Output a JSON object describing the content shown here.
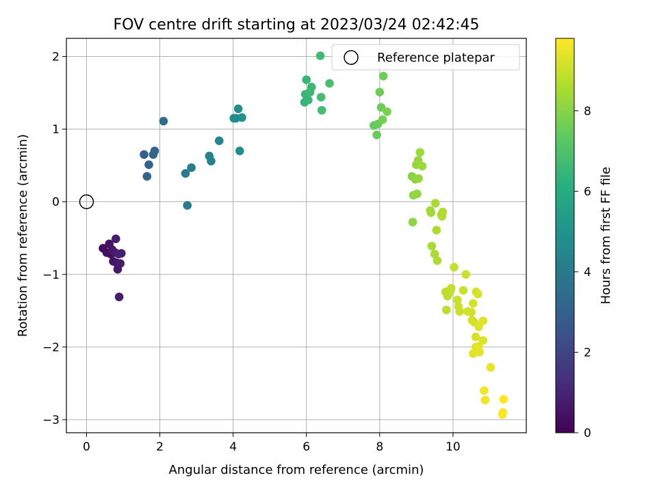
{
  "chart_data": {
    "type": "scatter",
    "title": "FOV centre drift starting at 2023/03/24 02:42:45",
    "xlabel": "Angular distance from reference (arcmin)",
    "ylabel": "Rotation from reference (arcmin)",
    "xlim": [
      -0.55,
      12.0
    ],
    "ylim": [
      -3.18,
      2.25
    ],
    "xticks": [
      0,
      2,
      4,
      6,
      8,
      10
    ],
    "yticks": [
      -3,
      -2,
      -1,
      0,
      1,
      2
    ],
    "grid": true,
    "legend": {
      "placement": "top-right",
      "entries": [
        "Reference platepar"
      ]
    },
    "reference_point": {
      "x": 0,
      "y": 0,
      "label": "Reference platepar"
    },
    "colorbar": {
      "label": "Hours from first FF file",
      "colormap": "viridis",
      "range": [
        0,
        9.8
      ],
      "ticks": [
        0,
        2,
        4,
        6,
        8
      ]
    },
    "points": [
      {
        "x": 0.45,
        "y": -0.64,
        "h": 0.3
      },
      {
        "x": 0.55,
        "y": -0.7,
        "h": 0.4
      },
      {
        "x": 0.62,
        "y": -0.58,
        "h": 0.5
      },
      {
        "x": 0.66,
        "y": -0.72,
        "h": 0.4
      },
      {
        "x": 0.7,
        "y": -0.66,
        "h": 0.6
      },
      {
        "x": 0.73,
        "y": -0.82,
        "h": 0.5
      },
      {
        "x": 0.78,
        "y": -0.7,
        "h": 0.7
      },
      {
        "x": 0.8,
        "y": -0.51,
        "h": 0.8
      },
      {
        "x": 0.82,
        "y": -0.84,
        "h": 0.6
      },
      {
        "x": 0.85,
        "y": -0.93,
        "h": 0.7
      },
      {
        "x": 0.88,
        "y": -0.72,
        "h": 0.9
      },
      {
        "x": 0.92,
        "y": -0.85,
        "h": 0.8
      },
      {
        "x": 0.95,
        "y": -0.71,
        "h": 0.9
      },
      {
        "x": 0.89,
        "y": -1.31,
        "h": 0.8
      },
      {
        "x": 1.57,
        "y": 0.65,
        "h": 3.0
      },
      {
        "x": 1.65,
        "y": 0.35,
        "h": 3.1
      },
      {
        "x": 1.7,
        "y": 0.51,
        "h": 3.1
      },
      {
        "x": 1.82,
        "y": 0.65,
        "h": 3.2
      },
      {
        "x": 1.86,
        "y": 0.7,
        "h": 3.2
      },
      {
        "x": 2.1,
        "y": 1.11,
        "h": 3.5
      },
      {
        "x": 2.7,
        "y": 0.39,
        "h": 4.0
      },
      {
        "x": 2.75,
        "y": -0.05,
        "h": 4.1
      },
      {
        "x": 2.86,
        "y": 0.47,
        "h": 4.1
      },
      {
        "x": 3.35,
        "y": 0.63,
        "h": 4.3
      },
      {
        "x": 3.4,
        "y": 0.56,
        "h": 4.3
      },
      {
        "x": 3.62,
        "y": 0.84,
        "h": 4.4
      },
      {
        "x": 4.02,
        "y": 1.15,
        "h": 4.7
      },
      {
        "x": 4.08,
        "y": 1.15,
        "h": 4.7
      },
      {
        "x": 4.14,
        "y": 1.28,
        "h": 4.8
      },
      {
        "x": 4.18,
        "y": 0.7,
        "h": 4.8
      },
      {
        "x": 4.24,
        "y": 1.16,
        "h": 4.9
      },
      {
        "x": 5.95,
        "y": 1.37,
        "h": 6.4
      },
      {
        "x": 5.97,
        "y": 1.48,
        "h": 6.5
      },
      {
        "x": 6.0,
        "y": 1.68,
        "h": 6.5
      },
      {
        "x": 6.05,
        "y": 1.4,
        "h": 6.5
      },
      {
        "x": 6.1,
        "y": 1.51,
        "h": 6.6
      },
      {
        "x": 6.14,
        "y": 1.58,
        "h": 6.6
      },
      {
        "x": 6.38,
        "y": 2.01,
        "h": 6.7
      },
      {
        "x": 6.4,
        "y": 1.44,
        "h": 6.8
      },
      {
        "x": 6.42,
        "y": 1.26,
        "h": 6.8
      },
      {
        "x": 6.63,
        "y": 1.63,
        "h": 6.9
      },
      {
        "x": 7.84,
        "y": 1.05,
        "h": 7.4
      },
      {
        "x": 7.92,
        "y": 0.92,
        "h": 7.5
      },
      {
        "x": 7.95,
        "y": 1.07,
        "h": 7.5
      },
      {
        "x": 8.0,
        "y": 1.51,
        "h": 7.6
      },
      {
        "x": 8.04,
        "y": 1.3,
        "h": 7.6
      },
      {
        "x": 8.08,
        "y": 1.13,
        "h": 7.7
      },
      {
        "x": 8.1,
        "y": 1.73,
        "h": 7.6
      },
      {
        "x": 8.2,
        "y": 1.24,
        "h": 7.8
      },
      {
        "x": 8.88,
        "y": 0.35,
        "h": 8.0
      },
      {
        "x": 8.9,
        "y": -0.28,
        "h": 8.1
      },
      {
        "x": 8.92,
        "y": 0.09,
        "h": 8.1
      },
      {
        "x": 8.97,
        "y": 0.31,
        "h": 8.1
      },
      {
        "x": 9.0,
        "y": 0.51,
        "h": 8.2
      },
      {
        "x": 9.02,
        "y": 0.11,
        "h": 8.2
      },
      {
        "x": 9.05,
        "y": 0.57,
        "h": 8.2
      },
      {
        "x": 9.06,
        "y": 0.32,
        "h": 8.2
      },
      {
        "x": 9.1,
        "y": 0.68,
        "h": 8.3
      },
      {
        "x": 9.16,
        "y": 0.49,
        "h": 8.3
      },
      {
        "x": 9.38,
        "y": -0.12,
        "h": 8.4
      },
      {
        "x": 9.4,
        "y": -0.15,
        "h": 8.4
      },
      {
        "x": 9.42,
        "y": -0.61,
        "h": 8.5
      },
      {
        "x": 9.5,
        "y": -0.72,
        "h": 8.5
      },
      {
        "x": 9.52,
        "y": -0.02,
        "h": 8.5
      },
      {
        "x": 9.55,
        "y": -0.39,
        "h": 8.6
      },
      {
        "x": 9.57,
        "y": -0.81,
        "h": 8.6
      },
      {
        "x": 9.68,
        "y": -0.18,
        "h": 8.6
      },
      {
        "x": 9.72,
        "y": -0.14,
        "h": 8.6
      },
      {
        "x": 9.7,
        "y": -0.2,
        "h": 8.6
      },
      {
        "x": 9.8,
        "y": -1.24,
        "h": 8.8
      },
      {
        "x": 9.82,
        "y": -1.49,
        "h": 8.8
      },
      {
        "x": 9.85,
        "y": -1.3,
        "h": 8.8
      },
      {
        "x": 9.92,
        "y": -1.24,
        "h": 8.9
      },
      {
        "x": 9.95,
        "y": -1.19,
        "h": 8.9
      },
      {
        "x": 10.03,
        "y": -0.9,
        "h": 8.9
      },
      {
        "x": 10.12,
        "y": -1.35,
        "h": 9.0
      },
      {
        "x": 10.15,
        "y": -1.44,
        "h": 9.0
      },
      {
        "x": 10.18,
        "y": -1.51,
        "h": 9.0
      },
      {
        "x": 10.28,
        "y": -1.22,
        "h": 9.0
      },
      {
        "x": 10.35,
        "y": -1.0,
        "h": 9.0
      },
      {
        "x": 10.4,
        "y": -1.51,
        "h": 9.1
      },
      {
        "x": 10.5,
        "y": -1.52,
        "h": 9.1
      },
      {
        "x": 10.52,
        "y": -1.63,
        "h": 9.1
      },
      {
        "x": 10.55,
        "y": -1.4,
        "h": 9.2
      },
      {
        "x": 10.58,
        "y": -1.66,
        "h": 9.2
      },
      {
        "x": 10.62,
        "y": -1.86,
        "h": 9.2
      },
      {
        "x": 10.63,
        "y": -1.24,
        "h": 9.2
      },
      {
        "x": 10.68,
        "y": -1.27,
        "h": 9.2
      },
      {
        "x": 10.7,
        "y": -1.72,
        "h": 9.3
      },
      {
        "x": 10.82,
        "y": -1.64,
        "h": 9.3
      },
      {
        "x": 10.82,
        "y": -1.91,
        "h": 9.3
      },
      {
        "x": 10.55,
        "y": -2.09,
        "h": 9.4
      },
      {
        "x": 10.62,
        "y": -2.0,
        "h": 9.4
      },
      {
        "x": 10.7,
        "y": -1.99,
        "h": 9.4
      },
      {
        "x": 10.72,
        "y": -2.07,
        "h": 9.4
      },
      {
        "x": 10.85,
        "y": -2.6,
        "h": 9.6
      },
      {
        "x": 10.88,
        "y": -2.73,
        "h": 9.6
      },
      {
        "x": 11.03,
        "y": -2.28,
        "h": 9.5
      },
      {
        "x": 11.36,
        "y": -2.9,
        "h": 9.8
      },
      {
        "x": 11.38,
        "y": -2.72,
        "h": 9.8
      },
      {
        "x": 11.35,
        "y": -2.93,
        "h": 9.8
      }
    ]
  }
}
